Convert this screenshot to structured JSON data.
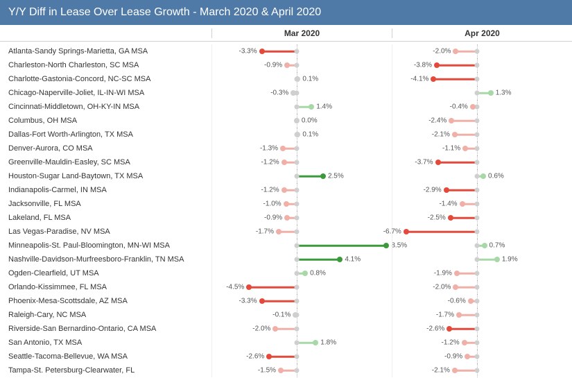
{
  "title": "Y/Y Diff in Lease Over Lease Growth - March 2020 & April 2020",
  "columns": [
    "Mar 2020",
    "Apr 2020"
  ],
  "chart": {
    "type": "lollipop",
    "scale_min": -8.0,
    "scale_max": 9.0,
    "zero_line_color": "#bbbbbb",
    "zero_line_dash": "dotted",
    "base_dot_color": "#cfcfcf",
    "background_color": "#ffffff",
    "label_fontsize": 11,
    "header_fontsize": 12,
    "title_fontsize": 16,
    "header_bg": "#4f7aa8",
    "header_text_color": "#ffffff",
    "colors": {
      "near_zero": "#cfcfcf",
      "mild_neg": "#f0b0a8",
      "strong_neg": "#e34a3b",
      "mild_pos": "#a8d8a8",
      "strong_pos": "#3c9a3c"
    },
    "thresholds": {
      "near_zero": 0.35,
      "strong": 2.5
    }
  },
  "rows": [
    {
      "label": "Atlanta-Sandy Springs-Marietta, GA MSA",
      "values": [
        -3.3,
        -2.0
      ]
    },
    {
      "label": "Charleston-North Charleston, SC MSA",
      "values": [
        -0.9,
        -3.8
      ]
    },
    {
      "label": "Charlotte-Gastonia-Concord, NC-SC MSA",
      "values": [
        0.1,
        -4.1
      ]
    },
    {
      "label": "Chicago-Naperville-Joliet, IL-IN-WI MSA",
      "values": [
        -0.3,
        1.3
      ]
    },
    {
      "label": "Cincinnati-Middletown, OH-KY-IN MSA",
      "values": [
        1.4,
        -0.4
      ]
    },
    {
      "label": "Columbus, OH MSA",
      "values": [
        0.0,
        -2.4
      ]
    },
    {
      "label": "Dallas-Fort Worth-Arlington, TX MSA",
      "values": [
        0.1,
        -2.1
      ]
    },
    {
      "label": "Denver-Aurora, CO MSA",
      "values": [
        -1.3,
        -1.1
      ]
    },
    {
      "label": "Greenville-Mauldin-Easley, SC MSA",
      "values": [
        -1.2,
        -3.7
      ]
    },
    {
      "label": "Houston-Sugar Land-Baytown, TX MSA",
      "values": [
        2.5,
        0.6
      ]
    },
    {
      "label": "Indianapolis-Carmel, IN MSA",
      "values": [
        -1.2,
        -2.9
      ]
    },
    {
      "label": "Jacksonville, FL MSA",
      "values": [
        -1.0,
        -1.4
      ]
    },
    {
      "label": "Lakeland, FL MSA",
      "values": [
        -0.9,
        -2.5
      ]
    },
    {
      "label": "Las Vegas-Paradise, NV MSA",
      "values": [
        -1.7,
        -6.7
      ]
    },
    {
      "label": "Minneapolis-St. Paul-Bloomington, MN-WI MSA",
      "values": [
        8.5,
        0.7
      ]
    },
    {
      "label": "Nashville-Davidson-Murfreesboro-Franklin, TN MSA",
      "values": [
        4.1,
        1.9
      ]
    },
    {
      "label": "Ogden-Clearfield, UT MSA",
      "values": [
        0.8,
        -1.9
      ]
    },
    {
      "label": "Orlando-Kissimmee, FL MSA",
      "values": [
        -4.5,
        -2.0
      ]
    },
    {
      "label": "Phoenix-Mesa-Scottsdale, AZ MSA",
      "values": [
        -3.3,
        -0.6
      ]
    },
    {
      "label": "Raleigh-Cary, NC MSA",
      "values": [
        -0.1,
        -1.7
      ]
    },
    {
      "label": "Riverside-San Bernardino-Ontario, CA MSA",
      "values": [
        -2.0,
        -2.6
      ]
    },
    {
      "label": "San Antonio, TX MSA",
      "values": [
        1.8,
        -1.2
      ]
    },
    {
      "label": "Seattle-Tacoma-Bellevue, WA MSA",
      "values": [
        -2.6,
        -0.9
      ]
    },
    {
      "label": "Tampa-St. Petersburg-Clearwater, FL",
      "values": [
        -1.5,
        -2.1
      ]
    }
  ]
}
